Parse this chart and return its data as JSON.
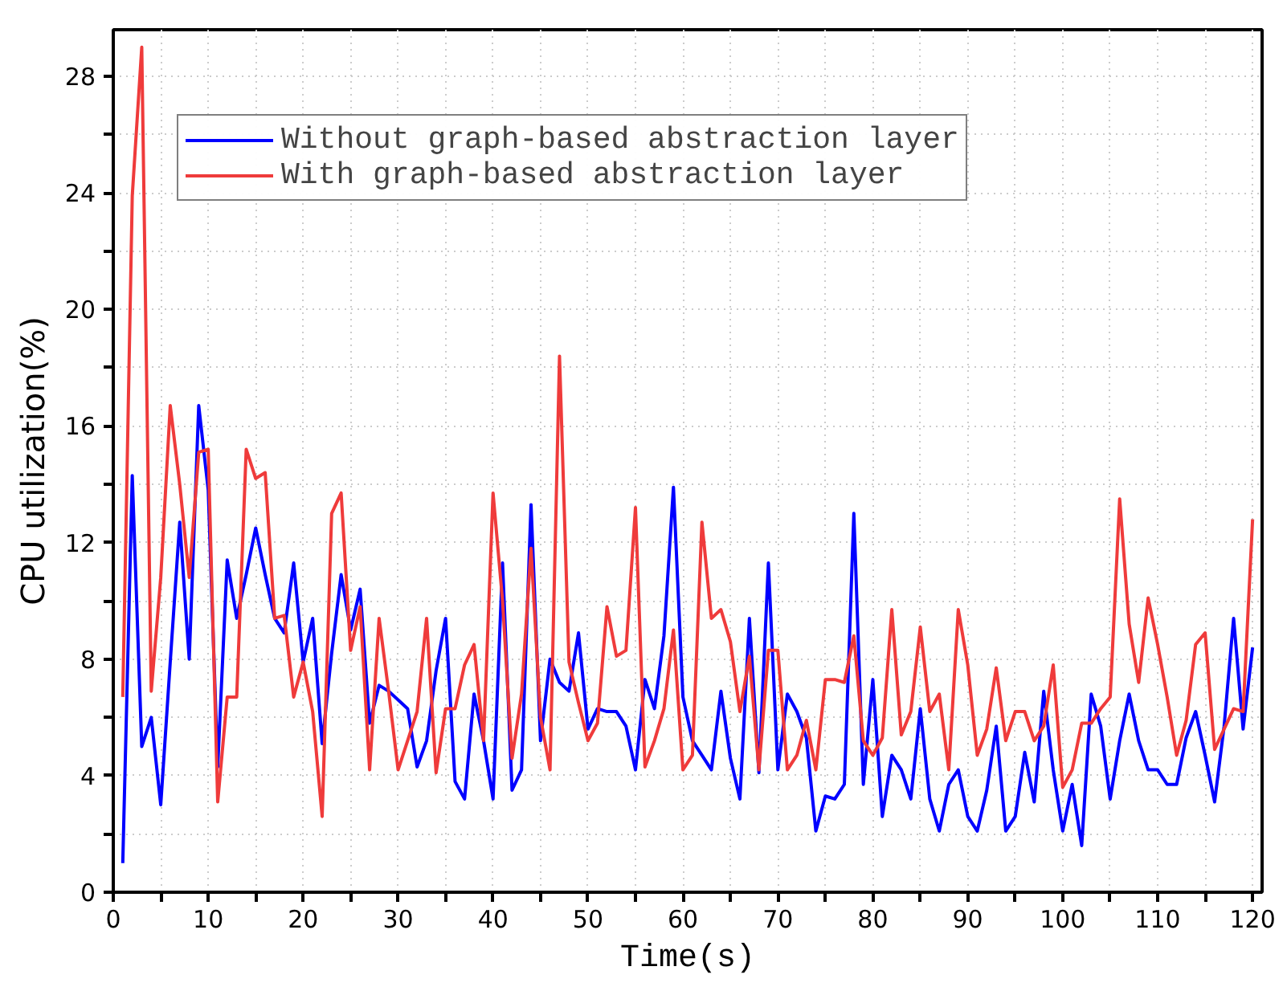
{
  "chart_data": {
    "type": "line",
    "xlabel": "Time(s)",
    "ylabel": "CPU utilization(%)",
    "x": [
      1,
      2,
      3,
      4,
      5,
      6,
      7,
      8,
      9,
      10,
      11,
      12,
      13,
      14,
      15,
      16,
      17,
      18,
      19,
      20,
      21,
      22,
      23,
      24,
      25,
      26,
      27,
      28,
      29,
      30,
      31,
      32,
      33,
      34,
      35,
      36,
      37,
      38,
      39,
      40,
      41,
      42,
      43,
      44,
      45,
      46,
      47,
      48,
      49,
      50,
      51,
      52,
      53,
      54,
      55,
      56,
      57,
      58,
      59,
      60,
      61,
      62,
      63,
      64,
      65,
      66,
      67,
      68,
      69,
      70,
      71,
      72,
      73,
      74,
      75,
      76,
      77,
      78,
      79,
      80,
      81,
      82,
      83,
      84,
      85,
      86,
      87,
      88,
      89,
      90,
      91,
      92,
      93,
      94,
      95,
      96,
      97,
      98,
      99,
      100,
      101,
      102,
      103,
      104,
      105,
      106,
      107,
      108,
      109,
      110,
      111,
      112,
      113,
      114,
      115,
      116,
      117,
      118,
      119,
      120
    ],
    "series": [
      {
        "name": "Without graph-based abstraction layer",
        "color": "#0000ff",
        "values": [
          1.0,
          14.3,
          5.0,
          6.0,
          3.0,
          7.9,
          12.7,
          8.0,
          16.7,
          13.8,
          4.3,
          11.4,
          9.4,
          10.9,
          12.5,
          10.9,
          9.4,
          8.9,
          11.3,
          7.9,
          9.4,
          5.1,
          8.2,
          10.9,
          9.0,
          10.4,
          5.8,
          7.1,
          6.9,
          6.6,
          6.3,
          4.3,
          5.2,
          7.6,
          9.4,
          3.8,
          3.2,
          6.8,
          5.2,
          3.2,
          11.3,
          3.5,
          4.2,
          13.3,
          5.2,
          8.0,
          7.2,
          6.9,
          8.9,
          5.6,
          6.3,
          6.2,
          6.2,
          5.7,
          4.2,
          7.3,
          6.3,
          8.8,
          13.9,
          6.7,
          5.2,
          4.7,
          4.2,
          6.9,
          4.6,
          3.2,
          9.4,
          4.1,
          11.3,
          4.2,
          6.8,
          6.2,
          5.3,
          2.1,
          3.3,
          3.2,
          3.7,
          13.0,
          3.7,
          7.3,
          2.6,
          4.7,
          4.2,
          3.2,
          6.3,
          3.2,
          2.1,
          3.7,
          4.2,
          2.6,
          2.1,
          3.5,
          5.7,
          2.1,
          2.6,
          4.8,
          3.1,
          6.9,
          4.2,
          2.1,
          3.7,
          1.6,
          6.8,
          5.7,
          3.2,
          5.2,
          6.8,
          5.2,
          4.2,
          4.2,
          3.7,
          3.7,
          5.3,
          6.2,
          4.7,
          3.1,
          5.7,
          9.4,
          5.6,
          8.4
        ]
      },
      {
        "name": "With graph-based abstraction layer",
        "color": "#ef3b3b",
        "values": [
          6.7,
          23.9,
          29.0,
          6.9,
          10.8,
          16.7,
          14.0,
          10.8,
          15.1,
          15.2,
          3.1,
          6.7,
          6.7,
          15.2,
          14.2,
          14.4,
          9.4,
          9.5,
          6.7,
          7.9,
          6.2,
          2.6,
          13.0,
          13.7,
          8.3,
          9.8,
          4.2,
          9.4,
          6.9,
          4.2,
          5.2,
          6.2,
          9.4,
          4.1,
          6.3,
          6.3,
          7.8,
          8.5,
          5.2,
          13.7,
          10.0,
          4.6,
          6.8,
          11.8,
          6.0,
          4.2,
          18.4,
          7.9,
          6.5,
          5.2,
          5.8,
          9.8,
          8.1,
          8.3,
          13.2,
          4.3,
          5.2,
          6.3,
          9.0,
          4.2,
          4.7,
          12.7,
          9.4,
          9.7,
          8.6,
          6.2,
          8.1,
          4.2,
          8.3,
          8.3,
          4.2,
          4.7,
          5.9,
          4.2,
          7.3,
          7.3,
          7.2,
          8.8,
          5.2,
          4.7,
          5.3,
          9.7,
          5.4,
          6.2,
          9.1,
          6.2,
          6.8,
          4.2,
          9.7,
          7.8,
          4.7,
          5.6,
          7.7,
          5.2,
          6.2,
          6.2,
          5.2,
          5.7,
          7.8,
          3.6,
          4.2,
          5.8,
          5.8,
          6.3,
          6.7,
          13.5,
          9.2,
          7.2,
          10.1,
          8.5,
          6.7,
          4.7,
          5.9,
          8.5,
          8.9,
          4.9,
          5.6,
          6.3,
          6.2,
          12.8
        ]
      }
    ],
    "xlim": [
      0,
      121
    ],
    "ylim": [
      0,
      29.6
    ],
    "xticks": [
      0,
      {
        "value": 5,
        "label": null
      },
      10,
      {
        "value": 15,
        "label": null
      },
      20,
      {
        "value": 25,
        "label": null
      },
      30,
      {
        "value": 35,
        "label": null
      },
      40,
      {
        "value": 45,
        "label": null
      },
      50,
      {
        "value": 55,
        "label": null
      },
      60,
      {
        "value": 65,
        "label": null
      },
      70,
      {
        "value": 75,
        "label": null
      },
      80,
      {
        "value": 85,
        "label": null
      },
      90,
      {
        "value": 95,
        "label": null
      },
      100,
      {
        "value": 105,
        "label": null
      },
      110,
      {
        "value": 115,
        "label": null
      },
      120
    ],
    "yticks": [
      0,
      {
        "value": 2,
        "label": null
      },
      4,
      {
        "value": 6,
        "label": null
      },
      8,
      {
        "value": 10,
        "label": null
      },
      12,
      {
        "value": 14,
        "label": null
      },
      16,
      {
        "value": 18,
        "label": null
      },
      20,
      {
        "value": 22,
        "label": null
      },
      24,
      {
        "value": 26,
        "label": null
      },
      28
    ],
    "grid": true,
    "legend": "top left",
    "marker": "none",
    "line_style": "solid"
  }
}
